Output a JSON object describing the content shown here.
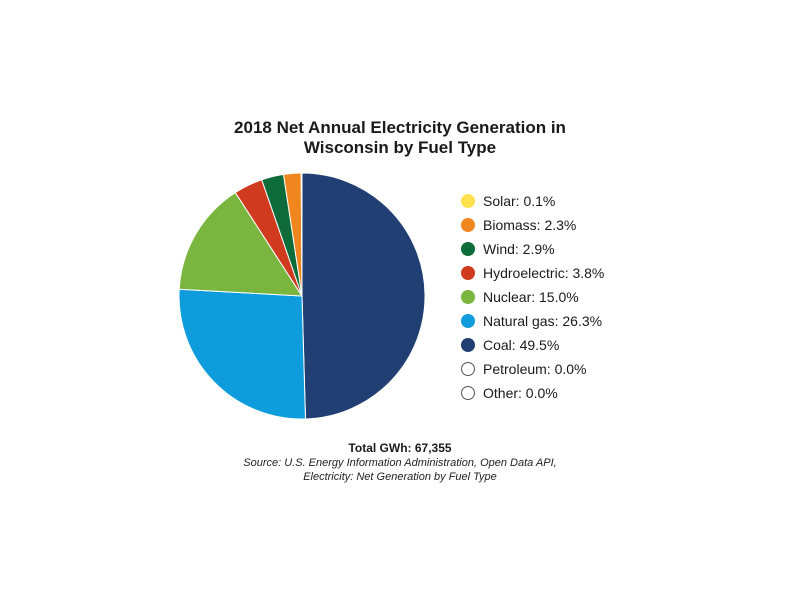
{
  "chart_data": {
    "type": "pie",
    "title_lines": [
      "2018 Net Annual Electricity Generation in",
      "Wisconsin by Fuel Type"
    ],
    "slices": [
      {
        "label": "Solar",
        "value": 0.1,
        "display": "Solar: 0.1%",
        "color": "#FFE14D"
      },
      {
        "label": "Biomass",
        "value": 2.3,
        "display": "Biomass: 2.3%",
        "color": "#F0861E"
      },
      {
        "label": "Wind",
        "value": 2.9,
        "display": "Wind: 2.9%",
        "color": "#0E6B3A"
      },
      {
        "label": "Hydroelectric",
        "value": 3.8,
        "display": "Hydroelectric: 3.8%",
        "color": "#D03A1E"
      },
      {
        "label": "Nuclear",
        "value": 15.0,
        "display": "Nuclear: 15.0%",
        "color": "#7AB540"
      },
      {
        "label": "Natural gas",
        "value": 26.3,
        "display": "Natural gas: 26.3%",
        "color": "#0E9CDD"
      },
      {
        "label": "Coal",
        "value": 49.5,
        "display": "Coal: 49.5%",
        "color": "#213F72"
      },
      {
        "label": "Petroleum",
        "value": 0.0,
        "display": "Petroleum: 0.0%",
        "color": null
      },
      {
        "label": "Other",
        "value": 0.0,
        "display": "Other: 0.0%",
        "color": null
      }
    ],
    "legend_position": "right"
  },
  "footer": {
    "total": "Total GWh: 67,355",
    "source_lines": [
      "Source: U.S. Energy Information Administration, Open Data API,",
      "Electricity: Net Generation by Fuel Type"
    ]
  }
}
